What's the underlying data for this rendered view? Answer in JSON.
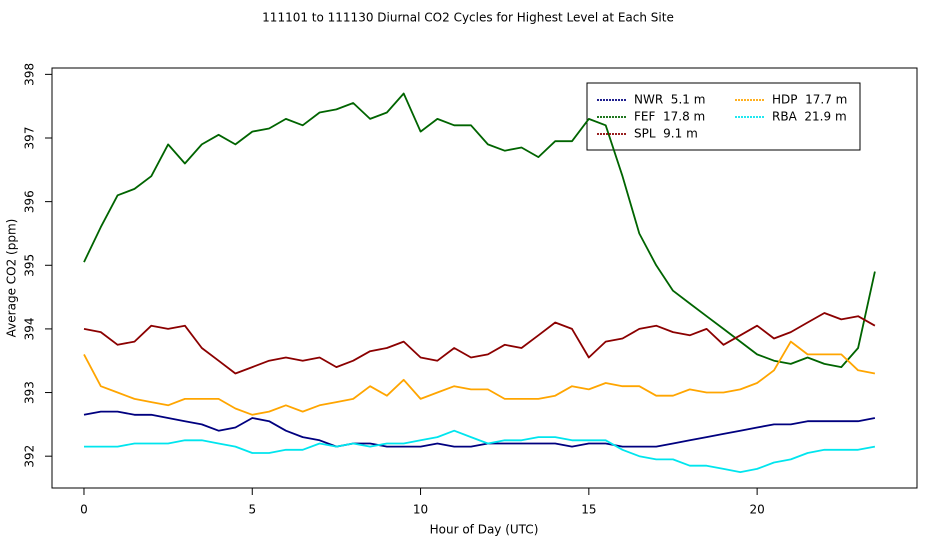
{
  "chart_data": {
    "type": "line",
    "title": "111101  to  111130 Diurnal CO2 Cycles for Highest Level at Each Site",
    "x_label": "Hour of Day (UTC)",
    "y_label": "Average CO2 (ppm)",
    "x": [
      0,
      0.5,
      1,
      1.5,
      2,
      2.5,
      3,
      3.5,
      4,
      4.5,
      5,
      5.5,
      6,
      6.5,
      7,
      7.5,
      8,
      8.5,
      9,
      9.5,
      10,
      10.5,
      11,
      11.5,
      12,
      12.5,
      13,
      13.5,
      14,
      14.5,
      15,
      15.5,
      16,
      16.5,
      17,
      17.5,
      18,
      18.5,
      19,
      19.5,
      20,
      20.5,
      21,
      21.5,
      22,
      22.5,
      23,
      23.5
    ],
    "xlim": [
      -0.95,
      24.75
    ],
    "xticks": [
      0,
      5,
      10,
      15,
      20
    ],
    "ylim": [
      391.5,
      398.1
    ],
    "yticks": [
      392,
      393,
      394,
      395,
      396,
      397,
      398
    ],
    "series": [
      {
        "name": "NWR  5.1 m",
        "color": "#00007f",
        "values": [
          392.65,
          392.7,
          392.7,
          392.65,
          392.65,
          392.6,
          392.55,
          392.5,
          392.4,
          392.45,
          392.6,
          392.55,
          392.4,
          392.3,
          392.25,
          392.15,
          392.2,
          392.2,
          392.15,
          392.15,
          392.15,
          392.2,
          392.15,
          392.15,
          392.2,
          392.2,
          392.2,
          392.2,
          392.2,
          392.15,
          392.2,
          392.2,
          392.15,
          392.15,
          392.15,
          392.2,
          392.25,
          392.3,
          392.35,
          392.4,
          392.45,
          392.5,
          392.5,
          392.55,
          392.55,
          392.55,
          392.55,
          392.6
        ]
      },
      {
        "name": "FEF  17.8 m",
        "color": "#006400",
        "values": [
          395.05,
          395.6,
          396.1,
          396.2,
          396.4,
          396.9,
          396.6,
          396.9,
          397.05,
          396.9,
          397.1,
          397.15,
          397.3,
          397.2,
          397.4,
          397.45,
          397.55,
          397.3,
          397.4,
          397.7,
          397.1,
          397.3,
          397.2,
          397.2,
          396.9,
          396.8,
          396.85,
          396.7,
          396.95,
          396.95,
          397.3,
          397.2,
          396.4,
          395.5,
          395.0,
          394.6,
          394.4,
          394.2,
          394.0,
          393.8,
          393.6,
          393.5,
          393.45,
          393.55,
          393.45,
          393.4,
          393.7,
          394.9
        ]
      },
      {
        "name": "SPL  9.1 m",
        "color": "#8b0000",
        "values": [
          394.0,
          393.95,
          393.75,
          393.8,
          394.05,
          394.0,
          394.05,
          393.7,
          393.5,
          393.3,
          393.4,
          393.5,
          393.55,
          393.5,
          393.55,
          393.4,
          393.5,
          393.65,
          393.7,
          393.8,
          393.55,
          393.5,
          393.7,
          393.55,
          393.6,
          393.75,
          393.7,
          393.9,
          394.1,
          394.0,
          393.55,
          393.8,
          393.85,
          394.0,
          394.05,
          393.95,
          393.9,
          394.0,
          393.75,
          393.9,
          394.05,
          393.85,
          393.95,
          394.1,
          394.25,
          394.15,
          394.2,
          394.05
        ]
      },
      {
        "name": "HDP  17.7 m",
        "color": "#ffa500",
        "values": [
          393.6,
          393.1,
          393.0,
          392.9,
          392.85,
          392.8,
          392.9,
          392.9,
          392.9,
          392.75,
          392.65,
          392.7,
          392.8,
          392.7,
          392.8,
          392.85,
          392.9,
          393.1,
          392.95,
          393.2,
          392.9,
          393.0,
          393.1,
          393.05,
          393.05,
          392.9,
          392.9,
          392.9,
          392.95,
          393.1,
          393.05,
          393.15,
          393.1,
          393.1,
          392.95,
          392.95,
          393.05,
          393.0,
          393.0,
          393.05,
          393.15,
          393.35,
          393.8,
          393.6,
          393.6,
          393.6,
          393.35,
          393.3
        ]
      },
      {
        "name": "RBA  21.9 m",
        "color": "#00e5ee",
        "values": [
          392.15,
          392.15,
          392.15,
          392.2,
          392.2,
          392.2,
          392.25,
          392.25,
          392.2,
          392.15,
          392.05,
          392.05,
          392.1,
          392.1,
          392.2,
          392.15,
          392.2,
          392.15,
          392.2,
          392.2,
          392.25,
          392.3,
          392.4,
          392.3,
          392.2,
          392.25,
          392.25,
          392.3,
          392.3,
          392.25,
          392.25,
          392.25,
          392.1,
          392.0,
          391.95,
          391.95,
          391.85,
          391.85,
          391.8,
          391.75,
          391.8,
          391.9,
          391.95,
          392.05,
          392.1,
          392.1,
          392.1,
          392.15
        ]
      }
    ]
  }
}
